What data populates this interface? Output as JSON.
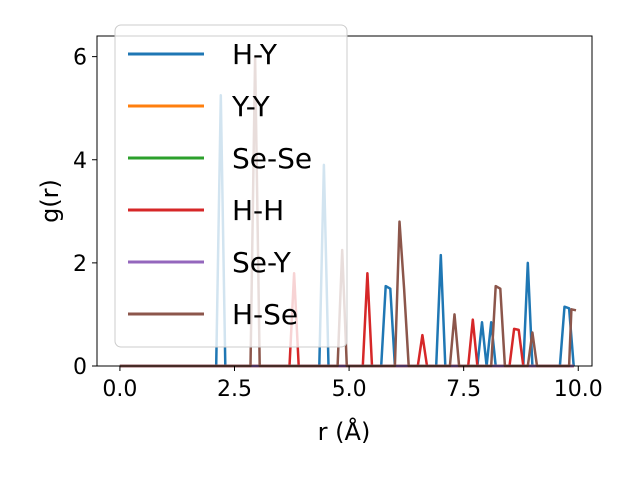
{
  "chart_data": {
    "type": "line",
    "xlabel": "r (Å)",
    "ylabel": "g(r)",
    "xlim": [
      -0.5,
      10.3
    ],
    "ylim": [
      0,
      6.4
    ],
    "xticks": [
      0.0,
      2.5,
      5.0,
      7.5,
      10.0
    ],
    "xtick_labels": [
      "0.0",
      "2.5",
      "5.0",
      "7.5",
      "10.0"
    ],
    "yticks": [
      0,
      2,
      4,
      6
    ],
    "ytick_labels": [
      "0",
      "2",
      "4",
      "6"
    ],
    "grid": false,
    "legend_position": "upper-left",
    "series": [
      {
        "name": "H-Y",
        "color": "#1f77b4",
        "points": [
          [
            0,
            0
          ],
          [
            2.1,
            0
          ],
          [
            2.2,
            5.25
          ],
          [
            2.3,
            0
          ],
          [
            4.35,
            0
          ],
          [
            4.45,
            3.9
          ],
          [
            4.55,
            0
          ],
          [
            5.7,
            0
          ],
          [
            5.8,
            1.55
          ],
          [
            5.9,
            1.5
          ],
          [
            6.0,
            0
          ],
          [
            6.9,
            0
          ],
          [
            7.0,
            2.15
          ],
          [
            7.1,
            0
          ],
          [
            7.8,
            0
          ],
          [
            7.9,
            0.85
          ],
          [
            8.0,
            0
          ],
          [
            8.1,
            0.85
          ],
          [
            8.2,
            0
          ],
          [
            8.8,
            0
          ],
          [
            8.9,
            2.0
          ],
          [
            9.0,
            0
          ],
          [
            9.6,
            0
          ],
          [
            9.7,
            1.15
          ],
          [
            9.8,
            1.12
          ],
          [
            9.9,
            0
          ]
        ]
      },
      {
        "name": "Y-Y",
        "color": "#ff7f0e",
        "points": [
          [
            0,
            0
          ],
          [
            9.9,
            0
          ]
        ]
      },
      {
        "name": "Se-Se",
        "color": "#2ca02c",
        "points": [
          [
            0,
            0
          ],
          [
            9.9,
            0
          ]
        ]
      },
      {
        "name": "H-H",
        "color": "#d62728",
        "points": [
          [
            0,
            0
          ],
          [
            3.7,
            0
          ],
          [
            3.8,
            1.8
          ],
          [
            3.9,
            0
          ],
          [
            5.3,
            0
          ],
          [
            5.4,
            1.8
          ],
          [
            5.5,
            0
          ],
          [
            6.5,
            0
          ],
          [
            6.6,
            0.6
          ],
          [
            6.7,
            0
          ],
          [
            7.6,
            0
          ],
          [
            7.7,
            0.9
          ],
          [
            7.8,
            0
          ],
          [
            8.5,
            0
          ],
          [
            8.6,
            0.72
          ],
          [
            8.7,
            0.7
          ],
          [
            8.8,
            0
          ],
          [
            9.9,
            0
          ]
        ]
      },
      {
        "name": "Se-Y",
        "color": "#9467bd",
        "points": [
          [
            0,
            0
          ],
          [
            9.9,
            0
          ]
        ]
      },
      {
        "name": "H-Se",
        "color": "#8c564b",
        "points": [
          [
            0,
            0
          ],
          [
            2.85,
            0
          ],
          [
            2.95,
            6.0
          ],
          [
            3.05,
            0
          ],
          [
            4.75,
            0
          ],
          [
            4.85,
            2.25
          ],
          [
            4.95,
            0
          ],
          [
            6.0,
            0
          ],
          [
            6.1,
            2.8
          ],
          [
            6.2,
            1.5
          ],
          [
            6.3,
            0
          ],
          [
            7.2,
            0
          ],
          [
            7.3,
            1.0
          ],
          [
            7.4,
            0
          ],
          [
            8.1,
            0
          ],
          [
            8.2,
            1.55
          ],
          [
            8.3,
            1.5
          ],
          [
            8.4,
            0
          ],
          [
            8.9,
            0
          ],
          [
            9.0,
            0.65
          ],
          [
            9.1,
            0
          ],
          [
            9.8,
            0
          ],
          [
            9.85,
            1.1
          ],
          [
            9.95,
            1.08
          ]
        ]
      }
    ]
  }
}
